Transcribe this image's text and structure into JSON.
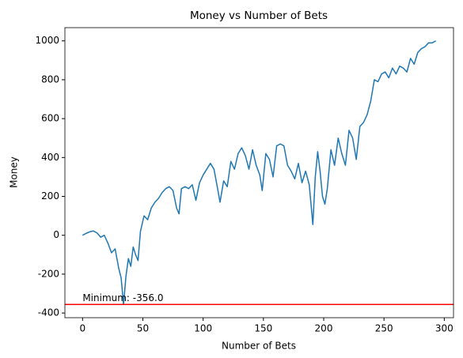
{
  "chart_data": {
    "type": "line",
    "title": "Money vs Number of Bets",
    "x_label": "Number of Bets",
    "y_label": "Money",
    "x": [
      0,
      3,
      6,
      9,
      12,
      15,
      18,
      21,
      24,
      27,
      30,
      32,
      34,
      36,
      38,
      40,
      42,
      44,
      46,
      48,
      51,
      54,
      57,
      60,
      63,
      66,
      69,
      72,
      75,
      78,
      80,
      82,
      85,
      88,
      91,
      94,
      97,
      100,
      103,
      106,
      109,
      112,
      114,
      117,
      120,
      123,
      126,
      129,
      132,
      135,
      138,
      141,
      144,
      147,
      149,
      152,
      155,
      158,
      161,
      164,
      167,
      170,
      173,
      176,
      179,
      182,
      185,
      188,
      191,
      193,
      195,
      197,
      199,
      201,
      203,
      206,
      209,
      212,
      215,
      218,
      221,
      224,
      227,
      230,
      233,
      236,
      239,
      242,
      245,
      248,
      251,
      254,
      257,
      260,
      263,
      266,
      269,
      272,
      275,
      278,
      281,
      284,
      287,
      290,
      293
    ],
    "series": [
      {
        "name": "Money",
        "color": "#1f77b4",
        "values": [
          0,
          10,
          18,
          22,
          12,
          -10,
          0,
          -40,
          -90,
          -70,
          -170,
          -220,
          -356,
          -210,
          -120,
          -160,
          -60,
          -100,
          -130,
          20,
          100,
          80,
          140,
          170,
          190,
          220,
          240,
          250,
          230,
          140,
          110,
          240,
          250,
          240,
          260,
          180,
          270,
          310,
          340,
          370,
          340,
          240,
          170,
          280,
          250,
          380,
          340,
          420,
          450,
          410,
          340,
          440,
          360,
          310,
          230,
          420,
          390,
          300,
          460,
          470,
          460,
          360,
          330,
          290,
          370,
          270,
          330,
          260,
          55,
          300,
          430,
          330,
          200,
          160,
          240,
          440,
          360,
          500,
          420,
          360,
          540,
          500,
          390,
          560,
          580,
          620,
          690,
          800,
          790,
          830,
          840,
          810,
          860,
          830,
          870,
          860,
          840,
          910,
          880,
          940,
          960,
          970,
          990,
          990,
          1000
        ]
      }
    ],
    "hline": -356,
    "hline_color": "#ff0000",
    "annotation": "Minimum: -356.0",
    "xlim": [
      -14.65,
      307.65
    ],
    "ylim": [
      -424,
      1068
    ],
    "xticks": [
      0,
      50,
      100,
      150,
      200,
      250,
      300
    ],
    "yticks": [
      -400,
      -200,
      0,
      200,
      400,
      600,
      800,
      1000
    ]
  }
}
